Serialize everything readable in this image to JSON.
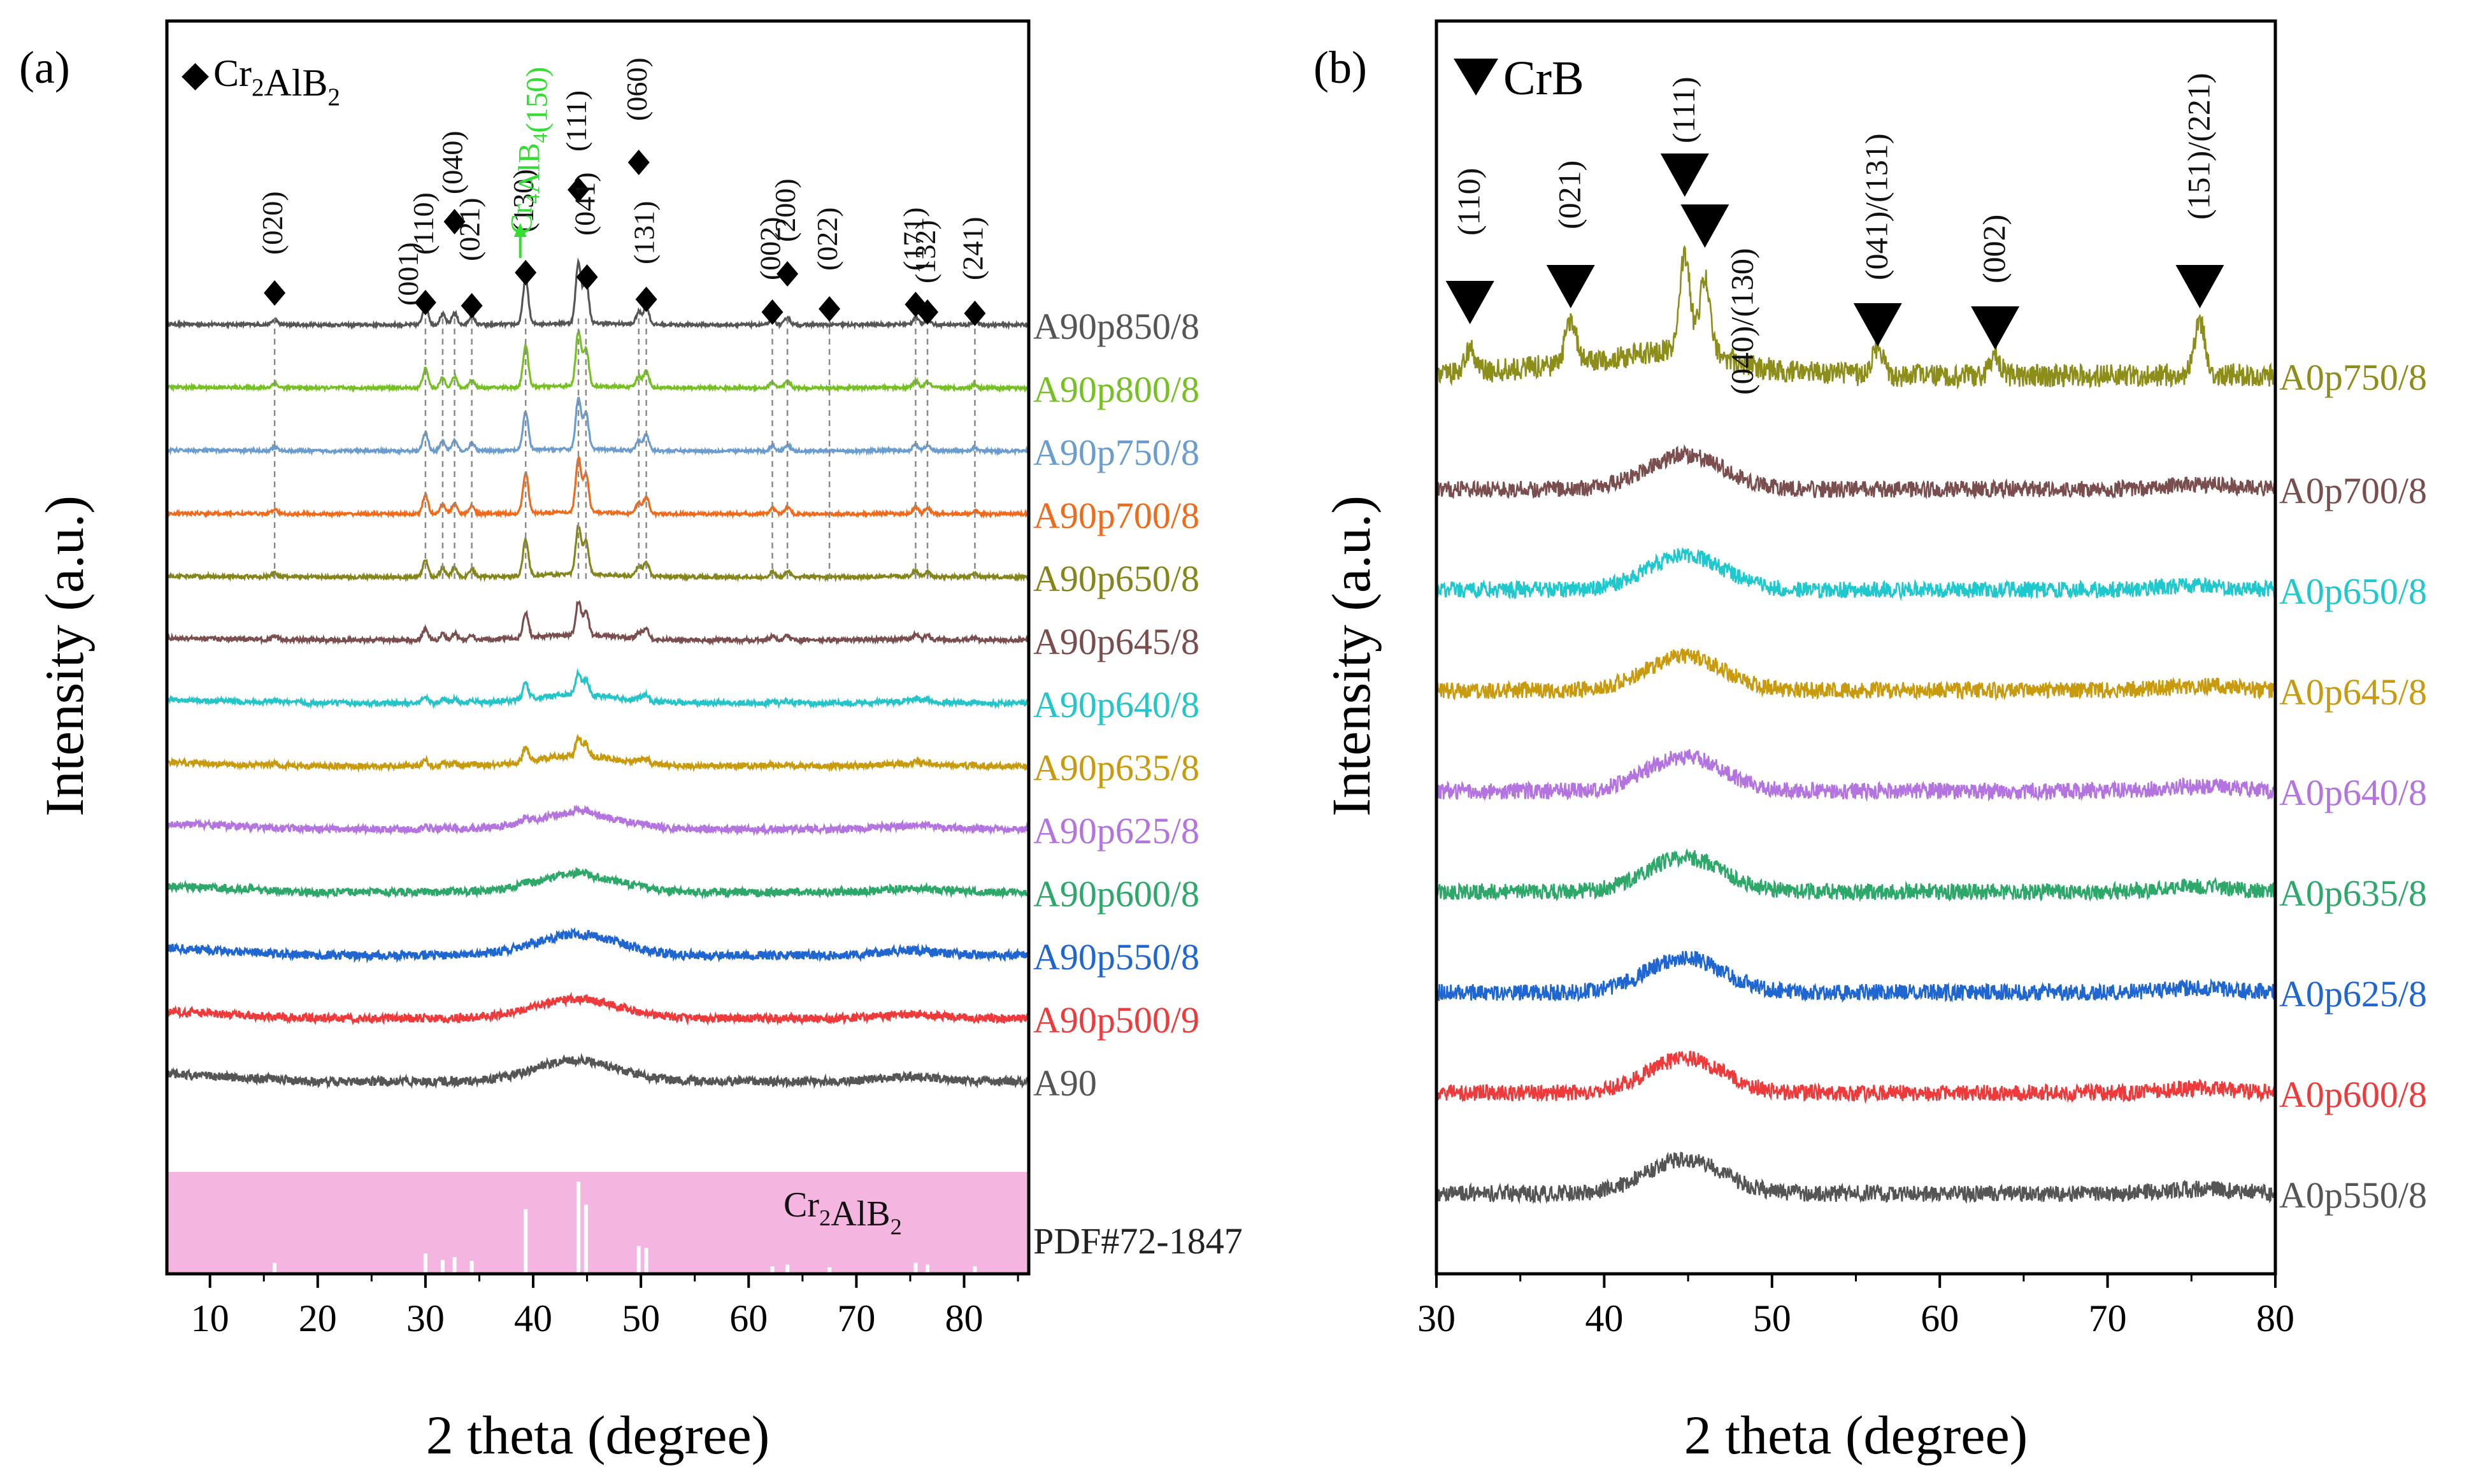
{
  "chart_data": [
    {
      "type": "line",
      "panel_label": "(a)",
      "xlabel": "2 theta (degree)",
      "ylabel": "Intensity (a.u.)",
      "xlim": [
        6,
        86
      ],
      "xticks": [
        10,
        20,
        30,
        40,
        50,
        60,
        70,
        80
      ],
      "legend_marker": "◆",
      "legend_phase": "Cr2AlB2",
      "secondary_phase_label": "Cr4AlB4(150)",
      "secondary_phase_x": 38.8,
      "secondary_phase_color": "#33dd33",
      "reference_label": "Cr2AlB2",
      "reference_pdf": "PDF#72-1847",
      "reference_color": "#f4b6e0",
      "reference_lines": [
        16,
        30,
        31.6,
        32.7,
        34.3,
        39.3,
        44.2,
        44.9,
        49.8,
        50.5,
        62.2,
        63.6,
        67.5,
        75.5,
        76.6,
        81.0
      ],
      "reference_heights": [
        0.12,
        0.22,
        0.15,
        0.18,
        0.14,
        0.7,
        1.0,
        0.75,
        0.3,
        0.28,
        0.08,
        0.1,
        0.07,
        0.12,
        0.1,
        0.08
      ],
      "peaks": [
        {
          "label": "(020)",
          "x": 16.0
        },
        {
          "label": "(001)",
          "x": 28.6
        },
        {
          "label": "(110)",
          "x": 30.0
        },
        {
          "label": "(040)",
          "x": 32.7
        },
        {
          "label": "(021)",
          "x": 34.3
        },
        {
          "label": "(130)",
          "x": 39.3
        },
        {
          "label": "(111)",
          "x": 44.2
        },
        {
          "label": "(041)",
          "x": 45.0
        },
        {
          "label": "(060)",
          "x": 49.8
        },
        {
          "label": "(131)",
          "x": 50.5
        },
        {
          "label": "(002)",
          "x": 62.2
        },
        {
          "label": "(200)",
          "x": 63.6
        },
        {
          "label": "(022)",
          "x": 67.5
        },
        {
          "label": "(171)",
          "x": 75.5
        },
        {
          "label": "(132)",
          "x": 76.6
        },
        {
          "label": "(241)",
          "x": 81.0
        }
      ],
      "series": [
        {
          "name": "A90p850/8",
          "color": "#555555",
          "crystallinity": 1.0,
          "broad": 0.05
        },
        {
          "name": "A90p800/8",
          "color": "#77c024",
          "crystallinity": 0.9,
          "broad": 0.05
        },
        {
          "name": "A90p750/8",
          "color": "#6b9ccf",
          "crystallinity": 0.85,
          "broad": 0.05
        },
        {
          "name": "A90p700/8",
          "color": "#f06a1c",
          "crystallinity": 0.9,
          "broad": 0.05
        },
        {
          "name": "A90p650/8",
          "color": "#84861c",
          "crystallinity": 0.8,
          "broad": 0.08
        },
        {
          "name": "A90p645/8",
          "color": "#7a4e4e",
          "crystallinity": 0.55,
          "broad": 0.15
        },
        {
          "name": "A90p640/8",
          "color": "#25c4c8",
          "crystallinity": 0.35,
          "broad": 0.25
        },
        {
          "name": "A90p635/8",
          "color": "#c89a0e",
          "crystallinity": 0.3,
          "broad": 0.3
        },
        {
          "name": "A90p625/8",
          "color": "#b374e0",
          "crystallinity": 0.1,
          "broad": 0.45
        },
        {
          "name": "A90p600/8",
          "color": "#2ea86a",
          "crystallinity": 0.05,
          "broad": 0.5
        },
        {
          "name": "A90p550/8",
          "color": "#2066d0",
          "crystallinity": 0.0,
          "broad": 0.6
        },
        {
          "name": "A90p500/9",
          "color": "#ee3a3a",
          "crystallinity": 0.0,
          "broad": 0.55
        },
        {
          "name": "A90",
          "color": "#555555",
          "crystallinity": 0.0,
          "broad": 0.6
        }
      ]
    },
    {
      "type": "line",
      "panel_label": "(b)",
      "xlabel": "2 theta (degree)",
      "ylabel": "Intensity (a.u.)",
      "xlim": [
        30,
        80
      ],
      "xticks": [
        30,
        40,
        50,
        60,
        70,
        80
      ],
      "legend_marker": "▼",
      "legend_phase": "CrB",
      "peaks": [
        {
          "label": "(110)",
          "x": 32.0
        },
        {
          "label": "(021)",
          "x": 38.0
        },
        {
          "label": "(111)",
          "x": 44.8
        },
        {
          "label": "(040)/(130)",
          "x": 46.0
        },
        {
          "label": "(041)/(131)",
          "x": 56.3
        },
        {
          "label": "(002)",
          "x": 63.3
        },
        {
          "label": "(151)/(221)",
          "x": 75.5
        }
      ],
      "series": [
        {
          "name": "A0p750/8",
          "color": "#8d8d1a",
          "crystallinity": 1.0,
          "broad": 0.3
        },
        {
          "name": "A0p700/8",
          "color": "#7a4e4e",
          "crystallinity": 0.0,
          "broad": 0.9
        },
        {
          "name": "A0p650/8",
          "color": "#1fc8cc",
          "crystallinity": 0.0,
          "broad": 0.9
        },
        {
          "name": "A0p645/8",
          "color": "#c89a0e",
          "crystallinity": 0.0,
          "broad": 0.9
        },
        {
          "name": "A0p640/8",
          "color": "#b374e0",
          "crystallinity": 0.0,
          "broad": 0.9
        },
        {
          "name": "A0p635/8",
          "color": "#2ea86a",
          "crystallinity": 0.0,
          "broad": 0.9
        },
        {
          "name": "A0p625/8",
          "color": "#2066d0",
          "crystallinity": 0.0,
          "broad": 0.9
        },
        {
          "name": "A0p600/8",
          "color": "#ee3a3a",
          "crystallinity": 0.0,
          "broad": 0.9
        },
        {
          "name": "A0p550/8",
          "color": "#555555",
          "crystallinity": 0.0,
          "broad": 0.9
        }
      ]
    }
  ]
}
